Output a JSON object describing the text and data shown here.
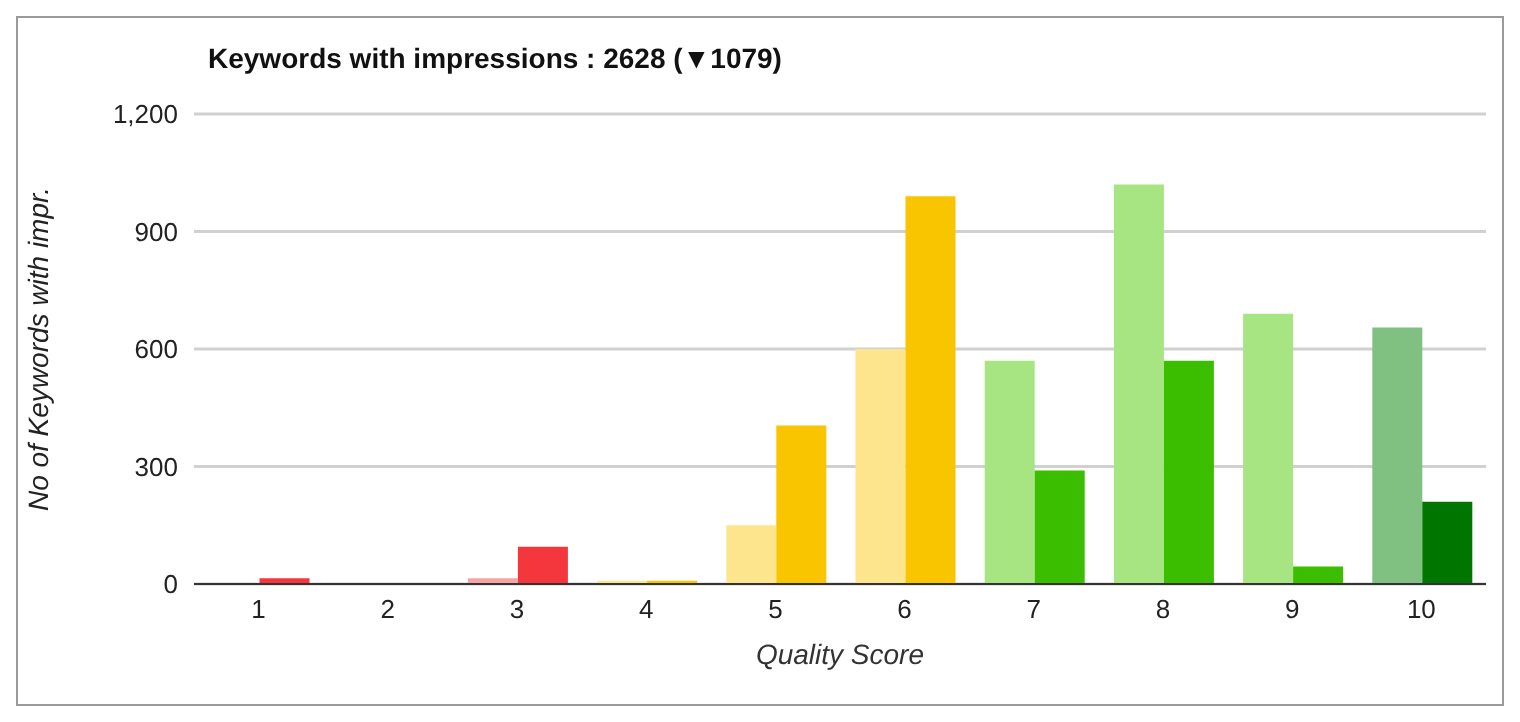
{
  "chart_data": {
    "type": "bar",
    "title": "Keywords with impressions : 2628 (▼1079)",
    "xlabel": "Quality Score",
    "ylabel": "No of Keywords with impr.",
    "categories": [
      "1",
      "2",
      "3",
      "4",
      "5",
      "6",
      "7",
      "8",
      "9",
      "10"
    ],
    "series": [
      {
        "colors": [
          "#f6a5a5",
          "#f6a5a5",
          "#f6a5a5",
          "#fce58c",
          "#fce58c",
          "#fce58c",
          "#a6e582",
          "#a6e582",
          "#a6e582",
          "#80c080"
        ],
        "values": [
          2,
          null,
          15,
          8,
          150,
          600,
          570,
          1020,
          690,
          655
        ]
      },
      {
        "colors": [
          "#f4363d",
          "#f4363d",
          "#f4363d",
          "#f9c400",
          "#f9c400",
          "#f9c400",
          "#3cbe00",
          "#3cbe00",
          "#3cbe00",
          "#007500"
        ],
        "values": [
          15,
          null,
          95,
          8,
          405,
          990,
          290,
          570,
          45,
          210
        ]
      }
    ],
    "ylim": [
      0,
      1200
    ],
    "yticks": [
      {
        "value": 0,
        "label": "0"
      },
      {
        "value": 300,
        "label": "300"
      },
      {
        "value": 600,
        "label": "600"
      },
      {
        "value": 900,
        "label": "900"
      },
      {
        "value": 1200,
        "label": "1,200"
      }
    ],
    "grid": "y"
  }
}
